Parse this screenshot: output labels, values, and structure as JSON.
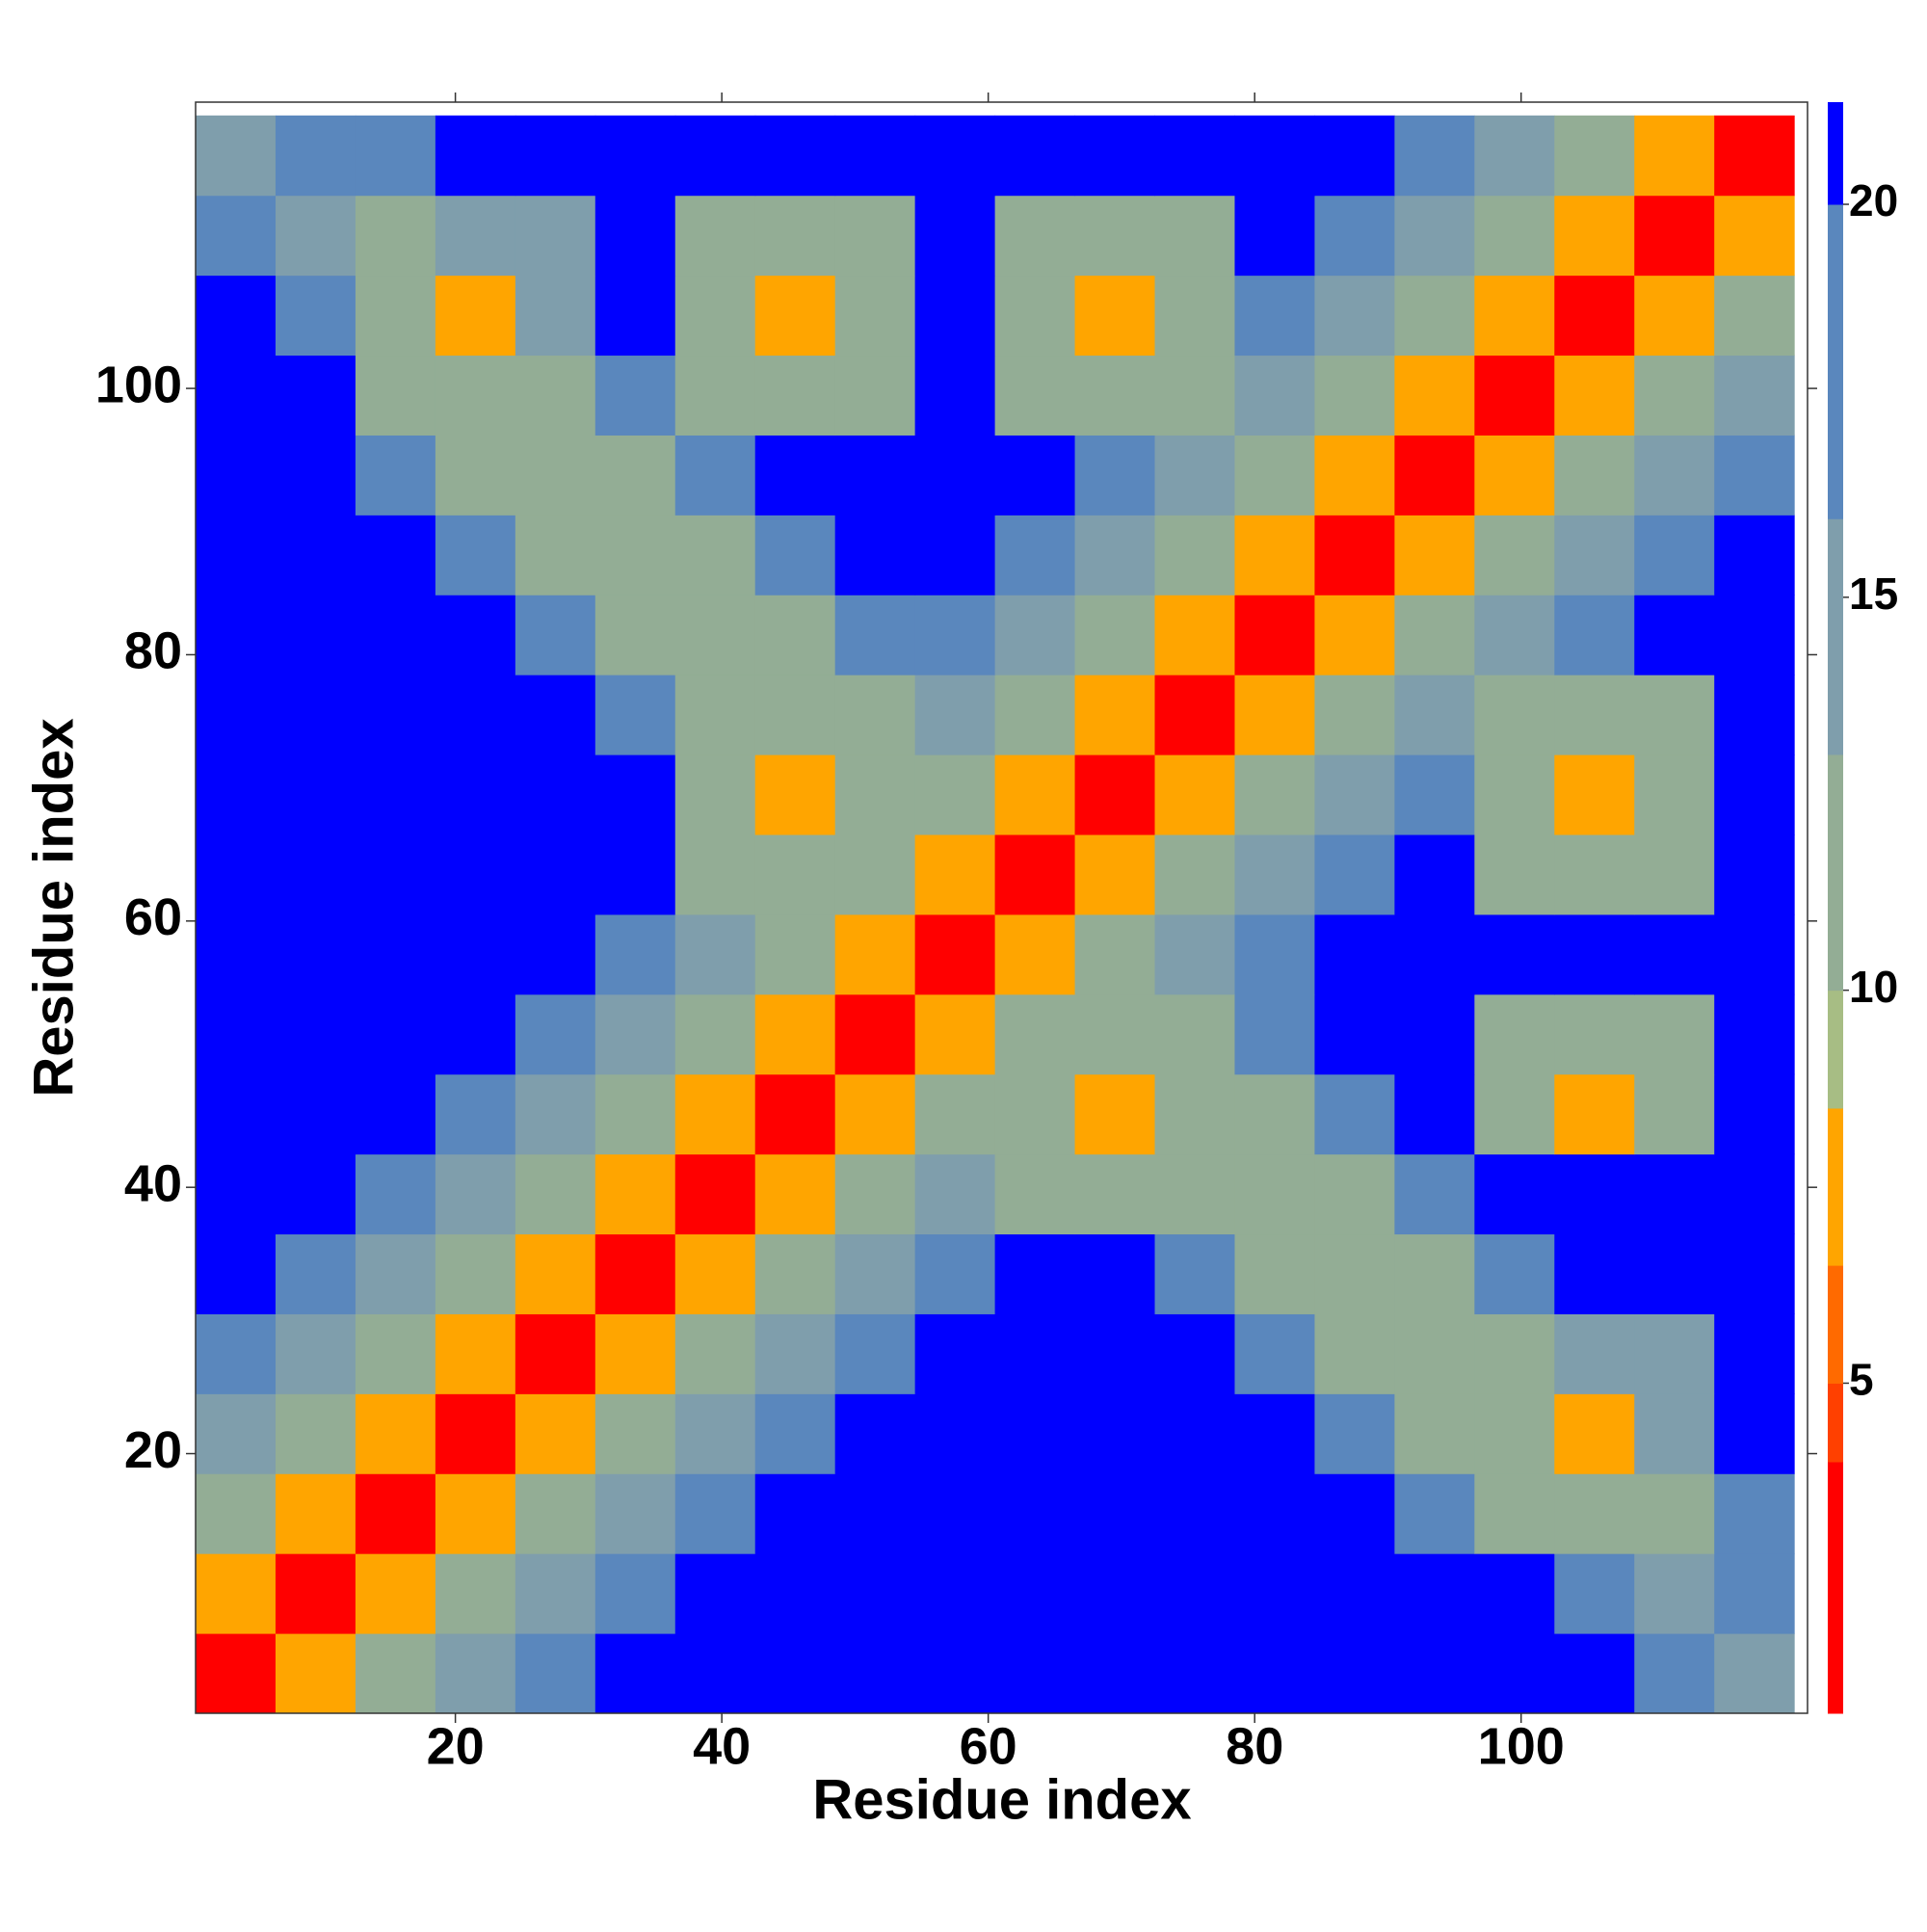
{
  "chart_data": {
    "type": "heatmap",
    "x_label": "Residue index",
    "y_label": "Residue index",
    "xlim": [
      0.5,
      121.5
    ],
    "ylim": [
      0.5,
      121.5
    ],
    "xticks": [
      20,
      40,
      60,
      80,
      100
    ],
    "yticks": [
      20,
      40,
      60,
      80,
      100
    ],
    "x": [
      3.5,
      9.5,
      15.5,
      21.5,
      27.5,
      33.5,
      39.5,
      45.5,
      51.5,
      57.5,
      63.5,
      69.5,
      75.5,
      81.5,
      87.5,
      93.5,
      99.5,
      105.5,
      111.5,
      117.5
    ],
    "y": [
      3.5,
      9.5,
      15.5,
      21.5,
      27.5,
      33.5,
      39.5,
      45.5,
      51.5,
      57.5,
      63.5,
      69.5,
      75.5,
      81.5,
      87.5,
      93.5,
      99.5,
      105.5,
      111.5,
      117.5
    ],
    "z": [
      [
        2,
        7,
        11,
        15,
        18,
        25,
        25,
        25,
        25,
        25,
        25,
        25,
        25,
        25,
        25,
        25,
        25,
        22,
        18,
        16
      ],
      [
        7,
        2,
        7,
        11,
        15,
        18,
        25,
        25,
        25,
        25,
        25,
        25,
        25,
        25,
        25,
        25,
        22,
        18,
        16,
        18
      ],
      [
        11,
        7,
        2,
        7,
        11,
        15,
        18,
        25,
        25,
        25,
        25,
        25,
        25,
        25,
        25,
        17,
        13,
        11,
        13,
        17
      ],
      [
        15,
        11,
        7,
        2,
        7,
        11,
        15,
        18,
        25,
        25,
        25,
        25,
        25,
        25,
        17,
        13,
        11,
        8,
        14,
        25
      ],
      [
        18,
        15,
        11,
        7,
        2,
        7,
        11,
        15,
        18,
        25,
        25,
        25,
        25,
        17,
        13,
        11,
        13,
        14,
        14,
        25
      ],
      [
        25,
        18,
        15,
        11,
        7,
        2,
        7,
        11,
        15,
        18,
        25,
        25,
        17,
        13,
        11,
        13,
        17,
        25,
        25,
        25
      ],
      [
        25,
        25,
        18,
        15,
        11,
        7,
        2,
        7,
        11,
        15,
        12,
        12,
        12,
        11,
        13,
        17,
        25,
        25,
        25,
        25
      ],
      [
        25,
        25,
        25,
        18,
        15,
        11,
        7,
        2,
        7,
        11,
        12,
        8,
        11,
        13,
        17,
        25,
        12,
        7,
        12,
        25
      ],
      [
        25,
        25,
        25,
        25,
        18,
        15,
        11,
        7,
        2,
        7,
        11,
        11,
        12,
        17,
        25,
        25,
        12,
        12,
        12,
        25
      ],
      [
        25,
        25,
        25,
        25,
        25,
        18,
        15,
        11,
        7,
        2,
        7,
        11,
        15,
        18,
        25,
        25,
        25,
        25,
        25,
        25
      ],
      [
        25,
        25,
        25,
        25,
        25,
        25,
        12,
        12,
        11,
        7,
        2,
        7,
        11,
        15,
        18,
        25,
        12,
        12,
        12,
        25
      ],
      [
        25,
        25,
        25,
        25,
        25,
        25,
        12,
        8,
        11,
        11,
        7,
        2,
        7,
        11,
        15,
        18,
        12,
        7,
        12,
        25
      ],
      [
        25,
        25,
        25,
        25,
        25,
        17,
        12,
        11,
        13,
        15,
        11,
        7,
        2,
        7,
        11,
        15,
        12,
        12,
        12,
        25
      ],
      [
        25,
        25,
        25,
        25,
        17,
        13,
        11,
        13,
        17,
        18,
        15,
        11,
        7,
        2,
        7,
        11,
        15,
        18,
        25,
        25
      ],
      [
        25,
        25,
        25,
        17,
        13,
        11,
        13,
        17,
        25,
        25,
        18,
        15,
        11,
        7,
        2,
        7,
        11,
        15,
        18,
        25
      ],
      [
        25,
        25,
        17,
        13,
        11,
        13,
        17,
        25,
        25,
        25,
        25,
        18,
        15,
        11,
        7,
        2,
        7,
        11,
        15,
        18
      ],
      [
        25,
        22,
        13,
        11,
        13,
        17,
        12,
        12,
        12,
        25,
        12,
        12,
        12,
        15,
        11,
        7,
        2,
        7,
        11,
        15
      ],
      [
        22,
        18,
        11,
        8,
        14,
        25,
        12,
        7,
        12,
        25,
        12,
        7,
        12,
        18,
        15,
        11,
        7,
        2,
        7,
        11
      ],
      [
        18,
        16,
        13,
        14,
        14,
        25,
        12,
        12,
        12,
        25,
        12,
        12,
        12,
        25,
        18,
        15,
        11,
        7,
        2,
        7
      ],
      [
        16,
        18,
        17,
        25,
        25,
        25,
        25,
        25,
        25,
        25,
        25,
        25,
        25,
        25,
        25,
        18,
        15,
        11,
        7,
        2
      ]
    ],
    "colorbar": {
      "lim": [
        0.8,
        21.3
      ],
      "ticks": [
        5,
        10,
        15,
        20
      ]
    },
    "colorscale": [
      {
        "max": 4,
        "color": "#ff0000"
      },
      {
        "max": 5,
        "color": "#ff4000"
      },
      {
        "max": 6.5,
        "color": "#ff6a00"
      },
      {
        "max": 8.5,
        "color": "#ffa500"
      },
      {
        "max": 10,
        "color": "#a7bd84"
      },
      {
        "max": 13,
        "color": "#93ad95"
      },
      {
        "max": 16,
        "color": "#7f9eac"
      },
      {
        "max": 20,
        "color": "#5a87bd"
      },
      {
        "max": 21.3,
        "color": "#0000ff"
      }
    ]
  }
}
